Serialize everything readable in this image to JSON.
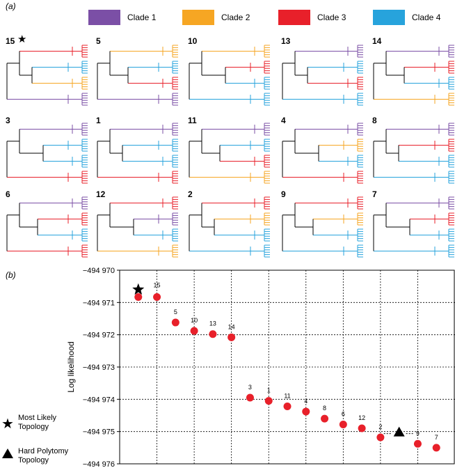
{
  "panel_a_label": "(a)",
  "panel_b_label": "(b)",
  "legend": [
    {
      "label": "Clade 1",
      "color": "#7B4FA6"
    },
    {
      "label": "Clade 2",
      "color": "#F6A623"
    },
    {
      "label": "Clade 3",
      "color": "#E8202A"
    },
    {
      "label": "Clade 4",
      "color": "#27A3DC"
    }
  ],
  "trees": [
    {
      "id": "15",
      "star": true
    },
    {
      "id": "5"
    },
    {
      "id": "10"
    },
    {
      "id": "13"
    },
    {
      "id": "14"
    },
    {
      "id": "3"
    },
    {
      "id": "1"
    },
    {
      "id": "11"
    },
    {
      "id": "4"
    },
    {
      "id": "8"
    },
    {
      "id": "6"
    },
    {
      "id": "12"
    },
    {
      "id": "2"
    },
    {
      "id": "9"
    },
    {
      "id": "7"
    }
  ],
  "chart_data": {
    "type": "scatter",
    "title": "",
    "xlabel": "",
    "ylabel": "Log likelihood",
    "ylim": [
      -494976,
      -494970
    ],
    "yticks": [
      "−494 970",
      "−494 971",
      "−494 972",
      "−494 973",
      "−494 974",
      "−494 975",
      "−494 976"
    ],
    "grid": true,
    "points": [
      {
        "label": "15",
        "y": -494970.83,
        "marker": "circle"
      },
      {
        "label": "5",
        "y": -494971.62,
        "marker": "circle"
      },
      {
        "label": "10",
        "y": -494971.88,
        "marker": "circle"
      },
      {
        "label": "13",
        "y": -494971.98,
        "marker": "circle"
      },
      {
        "label": "14",
        "y": -494972.08,
        "marker": "circle"
      },
      {
        "label": "3",
        "y": -494973.95,
        "marker": "circle"
      },
      {
        "label": "1",
        "y": -494974.05,
        "marker": "circle"
      },
      {
        "label": "11",
        "y": -494974.22,
        "marker": "circle"
      },
      {
        "label": "4",
        "y": -494974.38,
        "marker": "circle"
      },
      {
        "label": "8",
        "y": -494974.6,
        "marker": "circle"
      },
      {
        "label": "6",
        "y": -494974.78,
        "marker": "circle"
      },
      {
        "label": "12",
        "y": -494974.9,
        "marker": "circle"
      },
      {
        "label": "2",
        "y": -494975.18,
        "marker": "circle"
      },
      {
        "label": "9",
        "y": -494975.38,
        "marker": "circle"
      },
      {
        "label": "7",
        "y": -494975.5,
        "marker": "circle"
      }
    ],
    "special_markers": [
      {
        "name": "Most Likely Topology",
        "marker": "star",
        "y": -494970.6
      },
      {
        "name": "Hard Polytomy Topology",
        "marker": "triangle",
        "y": -494975.02
      }
    ],
    "point_color": "#E8202A"
  },
  "key": [
    {
      "marker": "star",
      "line1": "Most Likely",
      "line2": "Topology"
    },
    {
      "marker": "triangle",
      "line1": "Hard Polytomy",
      "line2": "Topology"
    }
  ]
}
